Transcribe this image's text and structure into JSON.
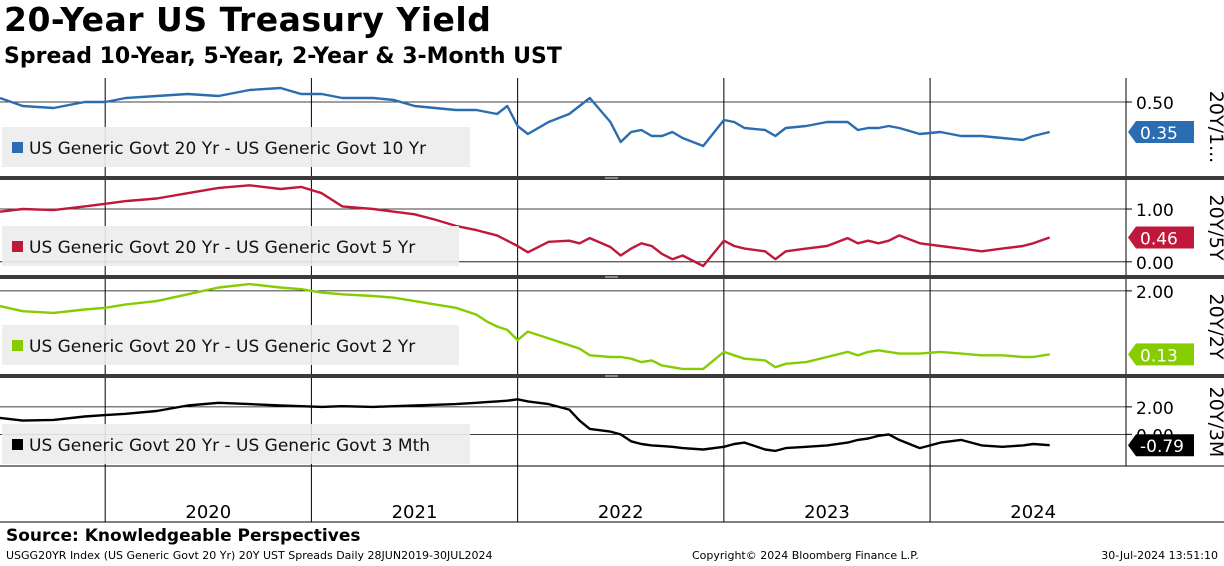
{
  "title": "20-Year US Treasury Yield",
  "subtitle": "Spread 10-Year, 5-Year, 2-Year & 3-Month UST",
  "source": "Source: Knowledgeable Perspectives",
  "footer": {
    "left": "USGG20YR Index (US Generic Govt 20 Yr) 20Y UST Spreads  Daily 28JUN2019-30JUL2024",
    "middle": "Copyright© 2024 Bloomberg Finance L.P.",
    "right": "30-Jul-2024 13:51:10"
  },
  "colors": {
    "blue": "#2a6db0",
    "red": "#c0183a",
    "green": "#86cc00",
    "black": "#000000"
  },
  "chart_data": {
    "type": "line",
    "x_tick_labels": [
      "2020",
      "2021",
      "2022",
      "2023",
      "2024"
    ],
    "x_range": [
      "2019-06-28",
      "2024-07-30"
    ],
    "panels": [
      {
        "name": "US Generic Govt 20 Yr - US Generic Govt 10 Yr",
        "axis_label": "20Y/1...",
        "last_value": "0.35",
        "color": "#2a6db0",
        "y_ticks": [
          "0.50"
        ],
        "ylim": [
          0.13,
          0.62
        ],
        "x": [
          2019.49,
          2019.6,
          2019.75,
          2019.9,
          2020.0,
          2020.1,
          2020.25,
          2020.4,
          2020.55,
          2020.7,
          2020.85,
          2020.95,
          2021.05,
          2021.15,
          2021.3,
          2021.4,
          2021.5,
          2021.6,
          2021.7,
          2021.8,
          2021.85,
          2021.9,
          2021.95,
          2022.0,
          2022.05,
          2022.15,
          2022.25,
          2022.3,
          2022.35,
          2022.45,
          2022.5,
          2022.55,
          2022.6,
          2022.65,
          2022.7,
          2022.75,
          2022.8,
          2022.9,
          2023.0,
          2023.05,
          2023.1,
          2023.2,
          2023.25,
          2023.3,
          2023.4,
          2023.5,
          2023.6,
          2023.65,
          2023.7,
          2023.75,
          2023.8,
          2023.85,
          2023.95,
          2024.05,
          2024.15,
          2024.25,
          2024.35,
          2024.45,
          2024.5,
          2024.58
        ],
        "y": [
          0.52,
          0.48,
          0.47,
          0.5,
          0.5,
          0.52,
          0.53,
          0.54,
          0.53,
          0.56,
          0.57,
          0.54,
          0.54,
          0.52,
          0.52,
          0.51,
          0.48,
          0.47,
          0.46,
          0.46,
          0.45,
          0.44,
          0.48,
          0.38,
          0.34,
          0.4,
          0.44,
          0.48,
          0.52,
          0.4,
          0.3,
          0.35,
          0.36,
          0.33,
          0.33,
          0.35,
          0.32,
          0.28,
          0.41,
          0.4,
          0.37,
          0.36,
          0.33,
          0.37,
          0.38,
          0.4,
          0.4,
          0.36,
          0.37,
          0.37,
          0.38,
          0.37,
          0.34,
          0.35,
          0.33,
          0.33,
          0.32,
          0.31,
          0.33,
          0.35
        ]
      },
      {
        "name": "US Generic Govt 20 Yr - US Generic Govt 5 Yr",
        "axis_label": "20Y/5Y",
        "last_value": "0.46",
        "color": "#c0183a",
        "y_ticks": [
          "1.00",
          "0.00"
        ],
        "ylim": [
          -0.25,
          1.55
        ],
        "x": [
          2019.49,
          2019.6,
          2019.75,
          2019.9,
          2020.0,
          2020.1,
          2020.25,
          2020.4,
          2020.55,
          2020.7,
          2020.85,
          2020.95,
          2021.05,
          2021.15,
          2021.3,
          2021.4,
          2021.5,
          2021.6,
          2021.7,
          2021.8,
          2021.85,
          2021.9,
          2021.95,
          2022.0,
          2022.05,
          2022.15,
          2022.25,
          2022.3,
          2022.35,
          2022.45,
          2022.5,
          2022.55,
          2022.6,
          2022.65,
          2022.7,
          2022.75,
          2022.8,
          2022.9,
          2023.0,
          2023.05,
          2023.1,
          2023.2,
          2023.25,
          2023.3,
          2023.4,
          2023.5,
          2023.6,
          2023.65,
          2023.7,
          2023.75,
          2023.8,
          2023.85,
          2023.95,
          2024.05,
          2024.15,
          2024.25,
          2024.35,
          2024.45,
          2024.5,
          2024.58
        ],
        "y": [
          0.95,
          1.0,
          0.98,
          1.05,
          1.1,
          1.15,
          1.2,
          1.3,
          1.4,
          1.45,
          1.38,
          1.42,
          1.3,
          1.05,
          1.0,
          0.95,
          0.9,
          0.8,
          0.68,
          0.6,
          0.55,
          0.5,
          0.4,
          0.3,
          0.18,
          0.38,
          0.4,
          0.35,
          0.45,
          0.28,
          0.12,
          0.25,
          0.35,
          0.3,
          0.15,
          0.05,
          0.12,
          -0.08,
          0.4,
          0.3,
          0.25,
          0.2,
          0.05,
          0.2,
          0.25,
          0.3,
          0.45,
          0.35,
          0.4,
          0.35,
          0.4,
          0.5,
          0.35,
          0.3,
          0.25,
          0.2,
          0.25,
          0.3,
          0.35,
          0.46
        ]
      },
      {
        "name": "US Generic Govt 20 Yr - US Generic Govt 2 Yr",
        "axis_label": "20Y/2Y",
        "last_value": "0.13",
        "color": "#86cc00",
        "y_ticks": [
          "2.00"
        ],
        "ylim": [
          -0.45,
          2.35
        ],
        "x": [
          2019.49,
          2019.6,
          2019.75,
          2019.9,
          2020.0,
          2020.1,
          2020.25,
          2020.4,
          2020.55,
          2020.7,
          2020.85,
          2020.95,
          2021.05,
          2021.15,
          2021.3,
          2021.4,
          2021.5,
          2021.6,
          2021.7,
          2021.8,
          2021.85,
          2021.9,
          2021.95,
          2022.0,
          2022.05,
          2022.15,
          2022.25,
          2022.3,
          2022.35,
          2022.45,
          2022.5,
          2022.55,
          2022.6,
          2022.65,
          2022.7,
          2022.75,
          2022.8,
          2022.9,
          2023.0,
          2023.05,
          2023.1,
          2023.2,
          2023.25,
          2023.3,
          2023.4,
          2023.5,
          2023.6,
          2023.65,
          2023.7,
          2023.75,
          2023.8,
          2023.85,
          2023.95,
          2024.05,
          2024.15,
          2024.25,
          2024.35,
          2024.45,
          2024.5,
          2024.58
        ],
        "y": [
          1.55,
          1.4,
          1.35,
          1.45,
          1.5,
          1.6,
          1.7,
          1.9,
          2.1,
          2.2,
          2.1,
          2.05,
          1.95,
          1.9,
          1.85,
          1.8,
          1.7,
          1.6,
          1.5,
          1.3,
          1.1,
          0.95,
          0.85,
          0.55,
          0.8,
          0.6,
          0.4,
          0.3,
          0.1,
          0.05,
          0.05,
          0.0,
          -0.1,
          -0.05,
          -0.2,
          -0.25,
          -0.3,
          -0.3,
          0.2,
          0.1,
          0.0,
          -0.05,
          -0.25,
          -0.15,
          -0.1,
          0.05,
          0.2,
          0.1,
          0.2,
          0.25,
          0.2,
          0.15,
          0.15,
          0.2,
          0.15,
          0.1,
          0.1,
          0.05,
          0.05,
          0.13
        ]
      },
      {
        "name": "US Generic Govt 20 Yr - US Generic Govt 3 Mth",
        "axis_label": "20Y/3M",
        "last_value": "-0.79",
        "color": "#000000",
        "y_ticks": [
          "2.00",
          "0.00"
        ],
        "ylim": [
          -2.3,
          4.1
        ],
        "x": [
          2019.49,
          2019.6,
          2019.75,
          2019.9,
          2020.0,
          2020.1,
          2020.25,
          2020.4,
          2020.55,
          2020.7,
          2020.85,
          2020.95,
          2021.05,
          2021.15,
          2021.3,
          2021.4,
          2021.5,
          2021.6,
          2021.7,
          2021.8,
          2021.85,
          2021.9,
          2021.95,
          2022.0,
          2022.05,
          2022.15,
          2022.25,
          2022.3,
          2022.35,
          2022.45,
          2022.5,
          2022.55,
          2022.6,
          2022.65,
          2022.7,
          2022.75,
          2022.8,
          2022.9,
          2023.0,
          2023.05,
          2023.1,
          2023.2,
          2023.25,
          2023.3,
          2023.4,
          2023.5,
          2023.6,
          2023.65,
          2023.7,
          2023.75,
          2023.8,
          2023.85,
          2023.95,
          2024.05,
          2024.15,
          2024.25,
          2024.35,
          2024.45,
          2024.5,
          2024.58
        ],
        "y": [
          1.2,
          1.0,
          1.05,
          1.3,
          1.4,
          1.5,
          1.7,
          2.1,
          2.3,
          2.2,
          2.1,
          2.05,
          2.0,
          2.05,
          2.0,
          2.05,
          2.1,
          2.15,
          2.2,
          2.3,
          2.35,
          2.4,
          2.45,
          2.55,
          2.4,
          2.2,
          1.8,
          1.0,
          0.4,
          0.2,
          0.0,
          -0.5,
          -0.7,
          -0.8,
          -0.85,
          -0.9,
          -1.0,
          -1.1,
          -0.9,
          -0.7,
          -0.6,
          -1.1,
          -1.2,
          -1.0,
          -0.9,
          -0.8,
          -0.6,
          -0.4,
          -0.3,
          -0.1,
          0.0,
          -0.4,
          -1.0,
          -0.6,
          -0.4,
          -0.8,
          -0.9,
          -0.8,
          -0.7,
          -0.79
        ]
      }
    ]
  }
}
